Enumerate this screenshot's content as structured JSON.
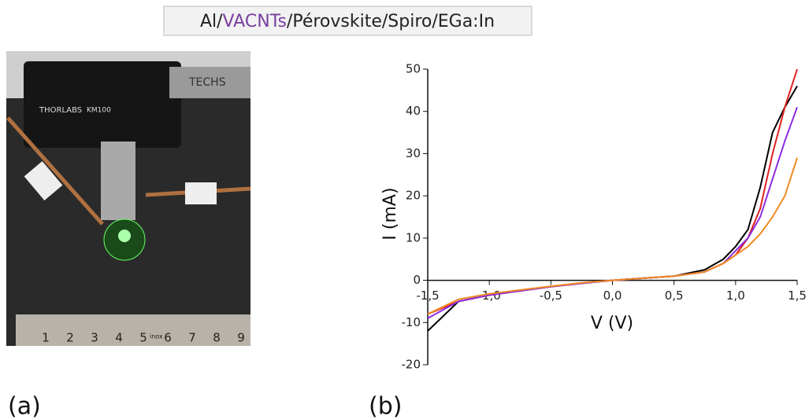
{
  "title_parts": [
    "Al/",
    "VACNTs",
    "/Pérovskite/Spiro/EGa:In"
  ],
  "panels": [
    {
      "label": "(a)"
    },
    {
      "label": "(b)"
    }
  ],
  "photo": {
    "brand": "THORLABS",
    "model": "KM100",
    "tube": "TECHS",
    "ruler_labels": [
      "1",
      "2",
      "3",
      "4",
      "5",
      "6",
      "7",
      "8",
      "9"
    ],
    "ruler_note": "inox"
  },
  "chart_data": {
    "type": "line",
    "xlabel": "V (V)",
    "ylabel": "I (mA)",
    "x": [
      -1.5,
      -1.25,
      -1,
      -0.75,
      -0.5,
      -0.25,
      0,
      0.25,
      0.5,
      0.75,
      0.9,
      1.0,
      1.1,
      1.2,
      1.3,
      1.4,
      1.5
    ],
    "series": [
      {
        "color": "#000000",
        "values": [
          -12,
          -5,
          -3.5,
          -2.5,
          -1.5,
          -0.7,
          0,
          0.5,
          1,
          2.5,
          5,
          8,
          12,
          22,
          35,
          41,
          46
        ]
      },
      {
        "color": "#e02020",
        "values": [
          -8,
          -5,
          -3.5,
          -2.5,
          -1.5,
          -0.7,
          0,
          0.5,
          1,
          2,
          4,
          6,
          10,
          17,
          30,
          41,
          50
        ]
      },
      {
        "color": "#8a2be2",
        "values": [
          -9,
          -5,
          -3.5,
          -2.5,
          -1.5,
          -0.7,
          0,
          0.5,
          1,
          2,
          4,
          7,
          10,
          15,
          24,
          33,
          41
        ]
      },
      {
        "color": "#f08a24",
        "values": [
          -8,
          -4.5,
          -3.2,
          -2.3,
          -1.4,
          -0.6,
          0,
          0.5,
          1,
          2,
          4,
          6,
          8,
          11,
          15,
          20,
          29
        ]
      }
    ],
    "xlim": [
      -1.5,
      1.5
    ],
    "xticks": [
      {
        "value": -1.5,
        "label": "-1,5"
      },
      {
        "value": -1,
        "label": "-1,0"
      },
      {
        "value": -0.5,
        "label": "-0,5"
      },
      {
        "value": 0,
        "label": "0,0"
      },
      {
        "value": 0.5,
        "label": "0,5"
      },
      {
        "value": 1,
        "label": "1,0"
      },
      {
        "value": 1.5,
        "label": "1,5"
      }
    ],
    "ylim": [
      -20,
      50
    ],
    "yticks": [
      -20,
      -10,
      0,
      10,
      20,
      30,
      40,
      50
    ],
    "grid": false
  }
}
